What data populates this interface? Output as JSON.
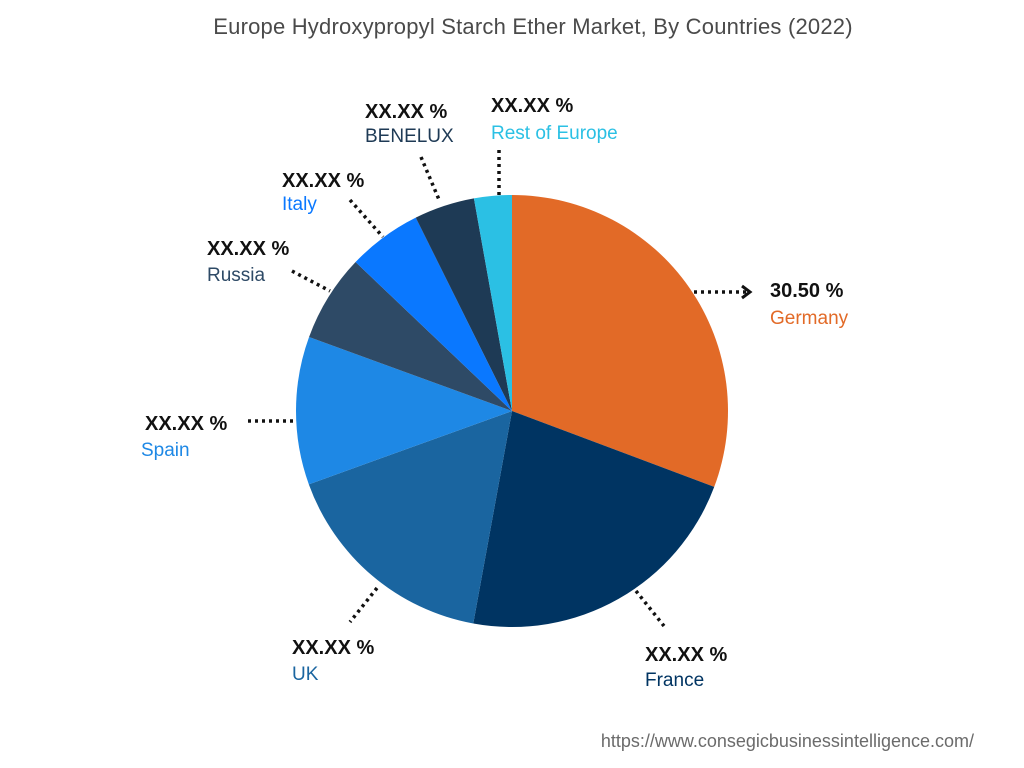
{
  "chart_data": {
    "type": "pie",
    "title": "Europe Hydroxypropyl Starch Ether Market, By Countries (2022)",
    "slices": [
      {
        "label": "Germany",
        "value_text": "30.50 %",
        "value": 30.5,
        "color": "#E26A27"
      },
      {
        "label": "France",
        "value_text": "XX.XX %",
        "value": 22.0,
        "color": "#003462"
      },
      {
        "label": "UK",
        "value_text": "XX.XX %",
        "value": 16.5,
        "color": "#1A65A0"
      },
      {
        "label": "Spain",
        "value_text": "XX.XX %",
        "value": 11.0,
        "color": "#1E88E5"
      },
      {
        "label": "Russia",
        "value_text": "XX.XX %",
        "value": 6.5,
        "color": "#2E4A66"
      },
      {
        "label": "Italy",
        "value_text": "XX.XX %",
        "value": 5.5,
        "color": "#0A78FF"
      },
      {
        "label": "BENELUX",
        "value_text": "XX.XX %",
        "value": 4.5,
        "color": "#1E3A55"
      },
      {
        "label": "Rest of Europe",
        "value_text": "XX.XX %",
        "value": 2.8,
        "color": "#2BC0E4"
      }
    ],
    "label_colors": {
      "Germany": "#E26A27",
      "France": "#003462",
      "UK": "#1A65A0",
      "Spain": "#1E88E5",
      "Russia": "#2E4A66",
      "Italy": "#0A78FF",
      "BENELUX": "#1E3A55",
      "Rest of Europe": "#2BC0E4"
    }
  },
  "source": "https://www.consegicbusinessintelligence.com/"
}
